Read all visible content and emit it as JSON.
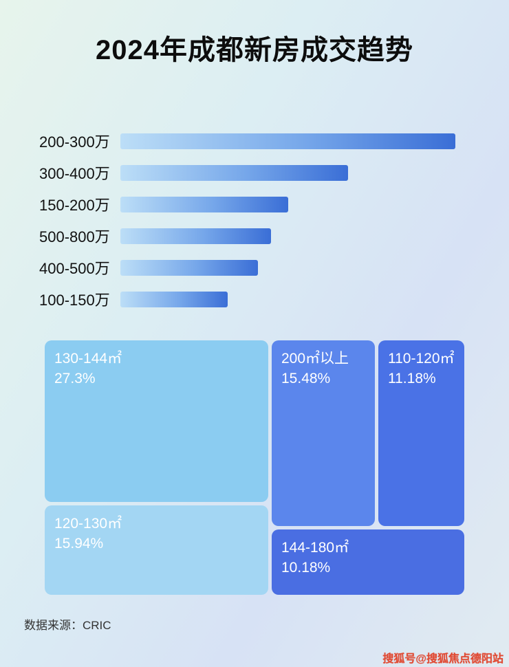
{
  "page": {
    "title": "2024年成都新房成交趋势",
    "source": "数据来源：CRIC",
    "watermark": "搜狐号@搜狐焦点德阳站"
  },
  "chart_data": [
    {
      "type": "bar",
      "orientation": "horizontal",
      "title": "2024年成都新房成交趋势",
      "categories": [
        "200-300万",
        "300-400万",
        "150-200万",
        "500-800万",
        "400-500万",
        "100-150万"
      ],
      "values_relative_pct_of_max": [
        100,
        68,
        50,
        45,
        41,
        32
      ],
      "value_labels_shown": false,
      "xlabel": "",
      "ylabel": "",
      "grid": false,
      "legend": false,
      "bar_color_gradient": [
        "#bcdef7",
        "#3a6ed6"
      ]
    },
    {
      "type": "treemap",
      "items": [
        {
          "label": "130-144㎡",
          "pct": "27.3%",
          "color": "#8bccf1"
        },
        {
          "label": "120-130㎡",
          "pct": "15.94%",
          "color": "#a3d6f3"
        },
        {
          "label": "200㎡以上",
          "pct": "15.48%",
          "color": "#5b86ec"
        },
        {
          "label": "110-120㎡",
          "pct": "11.18%",
          "color": "#4a72e6"
        },
        {
          "label": "144-180㎡",
          "pct": "10.18%",
          "color": "#4a6ee2"
        }
      ]
    }
  ]
}
